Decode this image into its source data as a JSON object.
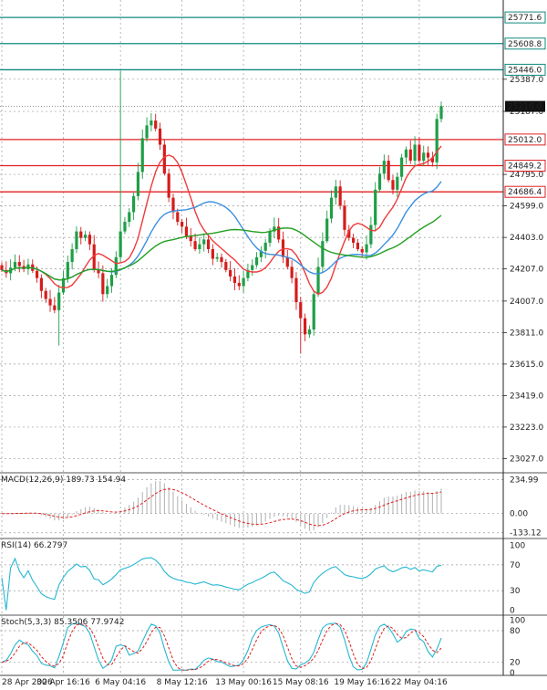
{
  "chart_data": [
    {
      "type": "candlestick",
      "name": "price",
      "ylim": [
        22950,
        25880
      ],
      "y_ticks": [
        "25387.0",
        "25187.0",
        "24795.0",
        "24599.0",
        "24403.0",
        "24207.0",
        "24007.0",
        "23811.0",
        "23615.0",
        "23419.0",
        "23223.0",
        "23027.0"
      ],
      "y_tick_values": [
        25387,
        25187,
        24795,
        24599,
        24403,
        24207,
        24007,
        23811,
        23615,
        23419,
        23223,
        23027
      ],
      "x_tick_labels": [
        "28 Apr 2026",
        "30 Apr 16:16",
        "6 May 04:16",
        "8 May 12:16",
        "13 May 00:16",
        "15 May 08:16",
        "19 May 16:16",
        "22 May 04:16"
      ],
      "x_tick_index": [
        0,
        14,
        27,
        41,
        55,
        68,
        82,
        95
      ],
      "levels": [
        {
          "label": "25771.6",
          "value": 25771.6,
          "color": "#0f8a80"
        },
        {
          "label": "25608.8",
          "value": 25608.8,
          "color": "#0f8a80"
        },
        {
          "label": "25446.0",
          "value": 25446.0,
          "color": "#0f8a80"
        },
        {
          "label": "25012.0",
          "value": 25012.0,
          "color": "#e02020"
        },
        {
          "label": "24849.2",
          "value": 24849.2,
          "color": "#e02020"
        },
        {
          "label": "24686.4",
          "value": 24686.4,
          "color": "#e02020"
        }
      ],
      "last_price": {
        "label": "25218.0",
        "value": 25218.0
      },
      "colors": {
        "up": "#1f9e47",
        "down": "#d51c1c",
        "ma_fast": "#f03a3a",
        "ma_mid": "#3a8fe0",
        "ma_slow": "#22a020"
      },
      "closes": [
        24200,
        24180,
        24215,
        24250,
        24225,
        24205,
        24235,
        24195,
        24150,
        24070,
        24020,
        23980,
        23950,
        24060,
        24150,
        24250,
        24330,
        24440,
        24400,
        24420,
        24360,
        24200,
        24180,
        24050,
        24100,
        24170,
        24280,
        24440,
        24500,
        24560,
        24660,
        24810,
        25020,
        25100,
        25130,
        25080,
        24980,
        24800,
        24650,
        24560,
        24500,
        24470,
        24410,
        24380,
        24330,
        24360,
        24390,
        24330,
        24270,
        24280,
        24250,
        24200,
        24160,
        24120,
        24100,
        24150,
        24200,
        24230,
        24280,
        24320,
        24370,
        24440,
        24470,
        24390,
        24280,
        24220,
        24150,
        24000,
        23900,
        23800,
        23830,
        24050,
        24220,
        24380,
        24520,
        24650,
        24720,
        24600,
        24450,
        24400,
        24370,
        24330,
        24310,
        24360,
        24480,
        24700,
        24800,
        24880,
        24760,
        24700,
        24780,
        24900,
        24950,
        24880,
        24980,
        24880,
        24930,
        24900,
        24870,
        25140,
        25220
      ]
    },
    {
      "type": "macd",
      "label": "MACD(12,26,9) 189.73 154.94",
      "ylim": [
        -160,
        270
      ],
      "y_ticks": [
        "234.99",
        "0.00",
        "-133.12"
      ],
      "y_tick_values": [
        234.99,
        0,
        -133.12
      ]
    },
    {
      "type": "rsi",
      "label": "RSI(14) 66.2797",
      "ylim": [
        -5,
        108
      ],
      "y_ticks": [
        "100",
        "70",
        "30",
        "0"
      ],
      "y_tick_values": [
        100,
        70,
        30,
        0
      ]
    },
    {
      "type": "stochastic",
      "label": "Stoch(5,3,3) 85.3506 77.9742",
      "ylim": [
        -5,
        106
      ],
      "y_ticks": [
        "100",
        "80",
        "20",
        "0"
      ],
      "y_tick_values": [
        100,
        80,
        20,
        0
      ]
    }
  ]
}
